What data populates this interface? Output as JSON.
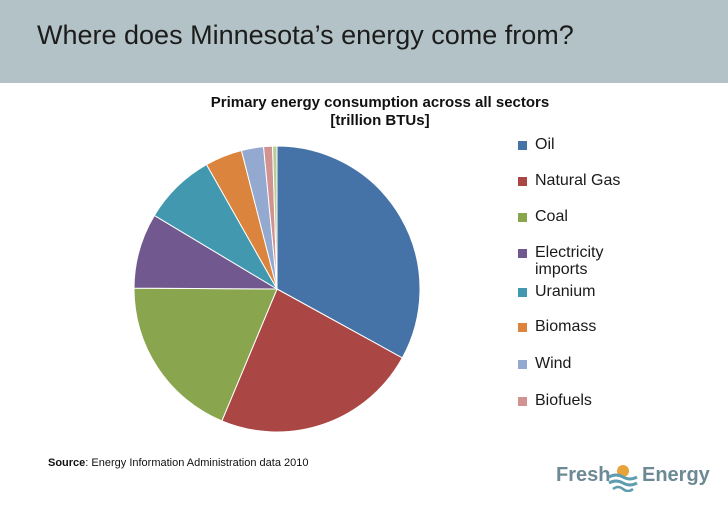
{
  "slide": {
    "title": "Where does Minnesota’s energy come from?",
    "header_color": "#b2c2c7"
  },
  "chart_data": {
    "type": "pie",
    "title": "Primary energy consumption across all sectors",
    "subtitle": "[trillion BTUs]",
    "unit": "trillion BTUs",
    "legend_position": "right",
    "start_angle": "12 o'clock, clockwise",
    "slices": [
      {
        "label": "Oil",
        "share": 0.33,
        "color": "#4572a7"
      },
      {
        "label": "Natural Gas",
        "share": 0.233,
        "color": "#aa4643"
      },
      {
        "label": "Coal",
        "share": 0.188,
        "color": "#89a54e"
      },
      {
        "label": "Electricity imports",
        "share": 0.085,
        "color": "#71588f"
      },
      {
        "label": "Uranium",
        "share": 0.082,
        "color": "#4198af"
      },
      {
        "label": "Biomass",
        "share": 0.042,
        "color": "#db843d"
      },
      {
        "label": "Wind",
        "share": 0.025,
        "color": "#93a9cf"
      },
      {
        "label": "Biofuels",
        "share": 0.01,
        "color": "#d19392"
      },
      {
        "label": "",
        "share": 0.005,
        "color": "#b9cd96"
      }
    ]
  },
  "source": {
    "label": "Source",
    "text": ": Energy Information Administration data 2010"
  },
  "logo": {
    "word1": "Fresh",
    "word2": "Energy",
    "icon": "sun-waves-icon",
    "color": "#6d8a94",
    "accent": "#e8a23a"
  }
}
